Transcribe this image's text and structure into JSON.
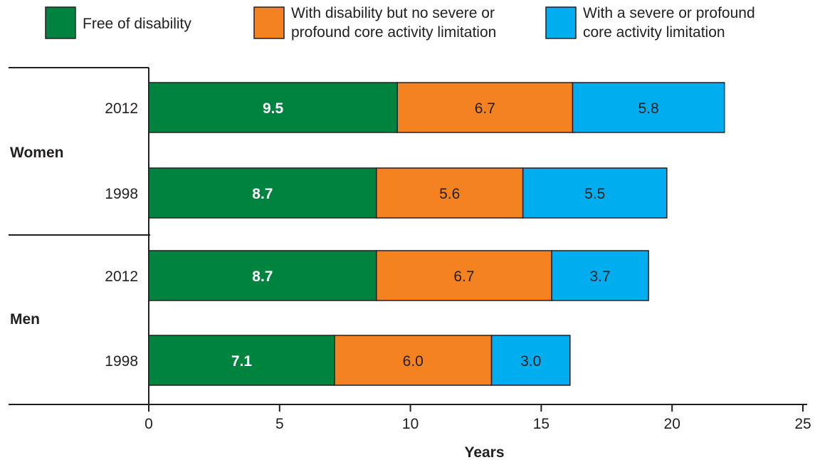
{
  "chart_data": {
    "type": "bar",
    "orientation": "horizontal",
    "stacked": true,
    "xlabel": "Years",
    "xlim": [
      0,
      25
    ],
    "xticks": [
      "0",
      "5",
      "10",
      "15",
      "20",
      "25"
    ],
    "legend_placement": "top",
    "groups": [
      "Women",
      "Men"
    ],
    "rows": [
      {
        "group": "Women",
        "label": "2012"
      },
      {
        "group": "Women",
        "label": "1998"
      },
      {
        "group": "Men",
        "label": "2012"
      },
      {
        "group": "Men",
        "label": "1998"
      }
    ],
    "series": [
      {
        "name": "Free of disability",
        "color": "#00833e",
        "label_style": "light",
        "values": [
          9.5,
          8.7,
          8.7,
          7.1
        ],
        "labels": [
          "9.5",
          "8.7",
          "8.7",
          "7.1"
        ]
      },
      {
        "name": "With disability but no severe or profound core activity limitation",
        "name_lines": [
          "With disability but no severe or",
          "profound core activity limitation"
        ],
        "color": "#f58220",
        "label_style": "dark",
        "values": [
          6.7,
          5.6,
          6.7,
          6.0
        ],
        "labels": [
          "6.7",
          "5.6",
          "6.7",
          "6.0"
        ]
      },
      {
        "name": "With a severe or profound core activity limitation",
        "name_lines": [
          "With a severe or profound",
          "core activity limitation"
        ],
        "color": "#00aeef",
        "label_style": "dark",
        "values": [
          5.8,
          5.5,
          3.7,
          3.0
        ],
        "labels": [
          "5.8",
          "5.5",
          "3.7",
          "3.0"
        ]
      }
    ]
  }
}
